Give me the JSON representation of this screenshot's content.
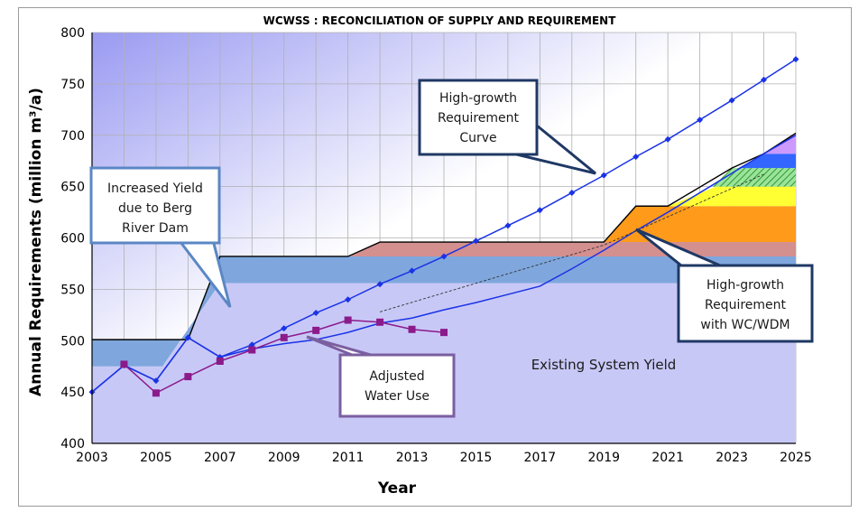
{
  "chart_data": {
    "type": "line",
    "title": "WCWSS : RECONCILIATION OF SUPPLY AND REQUIREMENT",
    "xlabel": "Year",
    "ylabel": "Annual Requirements (million m³/a)",
    "xlim": [
      2003,
      2025
    ],
    "ylim": [
      400,
      800
    ],
    "x_ticks": [
      "2003",
      "2005",
      "2007",
      "2009",
      "2011",
      "2013",
      "2015",
      "2017",
      "2019",
      "2021",
      "2023",
      "2025"
    ],
    "y_ticks": [
      "400",
      "450",
      "500",
      "550",
      "600",
      "650",
      "700",
      "750",
      "800"
    ],
    "grid": true,
    "series": [
      {
        "name": "High-growth Requirement Curve",
        "color": "#1a33e6",
        "marker": "diamond",
        "x": [
          2003,
          2004,
          2005,
          2006,
          2007,
          2008,
          2009,
          2010,
          2011,
          2012,
          2013,
          2014,
          2015,
          2016,
          2017,
          2018,
          2019,
          2020,
          2021,
          2022,
          2023,
          2024,
          2025
        ],
        "y": [
          450,
          476,
          461,
          503,
          484,
          496,
          512,
          527,
          540,
          555,
          568,
          582,
          597,
          612,
          627,
          644,
          661,
          679,
          696,
          715,
          734,
          754,
          774
        ]
      },
      {
        "name": "High-growth Requirement with WC/WDM",
        "color": "#1a33e6",
        "marker": "none",
        "x": [
          2003,
          2004,
          2005,
          2006,
          2007,
          2008,
          2009,
          2010,
          2011,
          2012,
          2013,
          2014,
          2015,
          2016,
          2017,
          2018,
          2019,
          2020,
          2021,
          2022,
          2023,
          2024,
          2025
        ],
        "y": [
          450,
          476,
          461,
          503,
          484,
          492,
          497,
          501,
          508,
          517,
          522,
          530,
          537,
          545,
          553,
          570,
          588,
          607,
          625,
          644,
          663,
          682,
          700
        ]
      },
      {
        "name": "Adjusted Water Use",
        "color": "#8b1a8b",
        "marker": "square",
        "x": [
          2004,
          2005,
          2006,
          2007,
          2008,
          2009,
          2010,
          2011,
          2012,
          2013,
          2014
        ],
        "y": [
          477,
          449,
          465,
          480,
          491,
          503,
          510,
          520,
          518,
          511,
          508
        ]
      },
      {
        "name": "",
        "color": "#333333",
        "marker": "none",
        "style": "dashed",
        "x": [
          2012,
          2019,
          2024
        ],
        "y": [
          528,
          593,
          662
        ]
      }
    ],
    "supply_steps": [
      {
        "x": 2003,
        "y": 501
      },
      {
        "x": 2006,
        "y": 501
      },
      {
        "x": 2007,
        "y": 582
      },
      {
        "x": 2011,
        "y": 582
      },
      {
        "x": 2012,
        "y": 596
      },
      {
        "x": 2019,
        "y": 596
      },
      {
        "x": 2020,
        "y": 631
      },
      {
        "x": 2021,
        "y": 631
      },
      {
        "x": 2023,
        "y": 668
      },
      {
        "x": 2024,
        "y": 682
      },
      {
        "x": 2025,
        "y": 702
      }
    ],
    "supply_bands": [
      {
        "color": "#7fa7dd",
        "x0": 2003,
        "x1": 2025,
        "y0": 556,
        "y1": 582
      },
      {
        "color": "#d48f8f",
        "x0": 2011,
        "x1": 2025,
        "y0": 582,
        "y1": 596
      },
      {
        "color": "#ff9a1a",
        "x0": 2019,
        "x1": 2025,
        "y0": 596,
        "y1": 631
      },
      {
        "color": "#ffff33",
        "x0": 2021,
        "x1": 2025,
        "y0": 631,
        "y1": 650
      },
      {
        "color": "#66cc66",
        "x0": 2022,
        "x1": 2025,
        "y0": 650,
        "y1": 668
      },
      {
        "color": "#3366ff",
        "x0": 2023,
        "x1": 2025,
        "y0": 668,
        "y1": 682
      },
      {
        "color": "#cc99ff",
        "x0": 2024,
        "x1": 2025,
        "y0": 682,
        "y1": 702
      }
    ],
    "annotations": [
      {
        "text": [
          "High-growth",
          "Requirement",
          "Curve"
        ]
      },
      {
        "text": [
          "Increased Yield",
          "due to Berg",
          "River Dam"
        ]
      },
      {
        "text": [
          "High-growth",
          "Requirement",
          "with WC/WDM"
        ]
      },
      {
        "text": [
          "Adjusted",
          "Water Use"
        ]
      },
      {
        "text": [
          "Existing System Yield"
        ]
      }
    ]
  }
}
